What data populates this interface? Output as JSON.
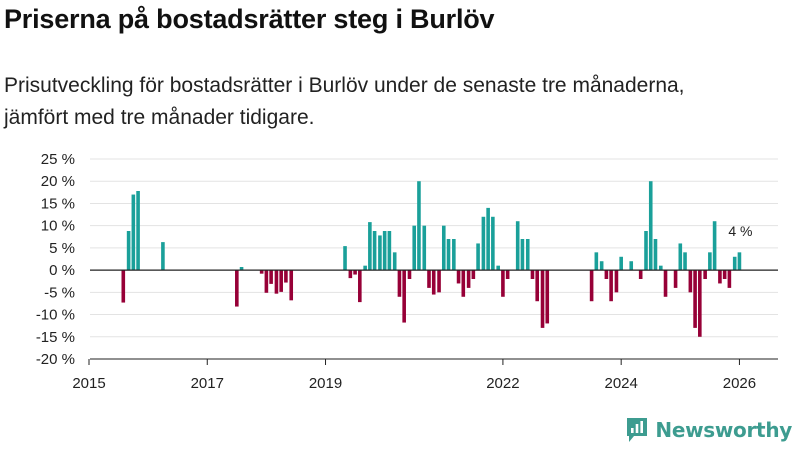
{
  "header": {
    "title": "Priserna på bostadsrätter steg i Burlöv",
    "subtitle_line1": "Prisutveckling för bostadsrätter i Burlöv under de senaste tre månaderna,",
    "subtitle_line2": "jämfört med tre månader tidigare."
  },
  "brand": {
    "name": "Newsworthy",
    "icon": "newsworthy-logo-icon"
  },
  "colors": {
    "positive": "#1aa09a",
    "negative": "#970037",
    "grid": "#e3e3e3",
    "axis": "#222222",
    "brand": "#3d9c90"
  },
  "chart_data": {
    "type": "bar",
    "title": "Priserna på bostadsrätter steg i Burlöv",
    "xlabel": "",
    "ylabel": "",
    "xlim": [
      2015.0,
      2026.4
    ],
    "ylim": [
      -20,
      25
    ],
    "y_ticks": [
      -20,
      -15,
      -10,
      -5,
      0,
      5,
      10,
      15,
      20,
      25
    ],
    "y_tick_labels": [
      "-20 %",
      "-15 %",
      "-10 %",
      "-5 %",
      "0 %",
      "5 %",
      "10 %",
      "15 %",
      "20 %",
      "25 %"
    ],
    "x_ticks": [
      2015,
      2017,
      2019,
      2022,
      2024,
      2026
    ],
    "x_tick_labels": [
      "2015",
      "2017",
      "2019",
      "2022",
      "2024",
      "2026"
    ],
    "grid": true,
    "annotation": {
      "x": 2026.0,
      "label": "4 %"
    },
    "x": [
      2015.58,
      2015.67,
      2015.75,
      2015.83,
      2016.25,
      2017.5,
      2017.58,
      2017.92,
      2018.0,
      2018.08,
      2018.17,
      2018.25,
      2018.33,
      2018.42,
      2019.33,
      2019.42,
      2019.5,
      2019.58,
      2019.67,
      2019.75,
      2019.83,
      2019.92,
      2020.0,
      2020.08,
      2020.17,
      2020.25,
      2020.33,
      2020.42,
      2020.5,
      2020.58,
      2020.67,
      2020.75,
      2020.83,
      2020.92,
      2021.0,
      2021.08,
      2021.17,
      2021.25,
      2021.33,
      2021.42,
      2021.5,
      2021.58,
      2021.67,
      2021.75,
      2021.83,
      2021.92,
      2022.0,
      2022.08,
      2022.17,
      2022.25,
      2022.33,
      2022.42,
      2022.5,
      2022.58,
      2022.67,
      2022.75,
      2022.83,
      2023.5,
      2023.58,
      2023.67,
      2023.75,
      2023.83,
      2023.92,
      2024.0,
      2024.08,
      2024.17,
      2024.33,
      2024.42,
      2024.5,
      2024.58,
      2024.67,
      2024.75,
      2024.92,
      2025.0,
      2025.08,
      2025.17,
      2025.25,
      2025.33,
      2025.42,
      2025.5,
      2025.58,
      2025.67,
      2025.75,
      2025.83,
      2025.92,
      2026.0
    ],
    "values": [
      -7.3,
      8.8,
      17.0,
      17.8,
      6.3,
      -8.2,
      0.7,
      -0.8,
      -5.1,
      -3.1,
      -5.3,
      -4.9,
      -2.8,
      -6.8,
      5.4,
      -1.8,
      -1.0,
      -7.2,
      1.0,
      10.8,
      8.8,
      7.8,
      8.8,
      8.8,
      4.0,
      -6.0,
      -11.8,
      -2.0,
      10.0,
      20.0,
      10.0,
      -4.0,
      -5.5,
      -5.0,
      10.0,
      7.0,
      7.0,
      -3.0,
      -6.0,
      -4.0,
      -2.0,
      6.0,
      12.0,
      14.0,
      12.0,
      1.0,
      -6.0,
      -2.0,
      0.0,
      11.0,
      7.0,
      7.0,
      -2.0,
      -7.0,
      -13.0,
      -12.0,
      0.0,
      -7.0,
      4.0,
      2.0,
      -2.0,
      -7.0,
      -5.0,
      3.0,
      0.0,
      2.0,
      -2.0,
      8.8,
      20.0,
      7.0,
      1.0,
      -6.0,
      -4.0,
      6.0,
      4.0,
      -5.0,
      -13.0,
      -15.0,
      -2.0,
      4.0,
      11.0,
      -3.0,
      -2.0,
      -4.0,
      3.0,
      4.0
    ]
  }
}
